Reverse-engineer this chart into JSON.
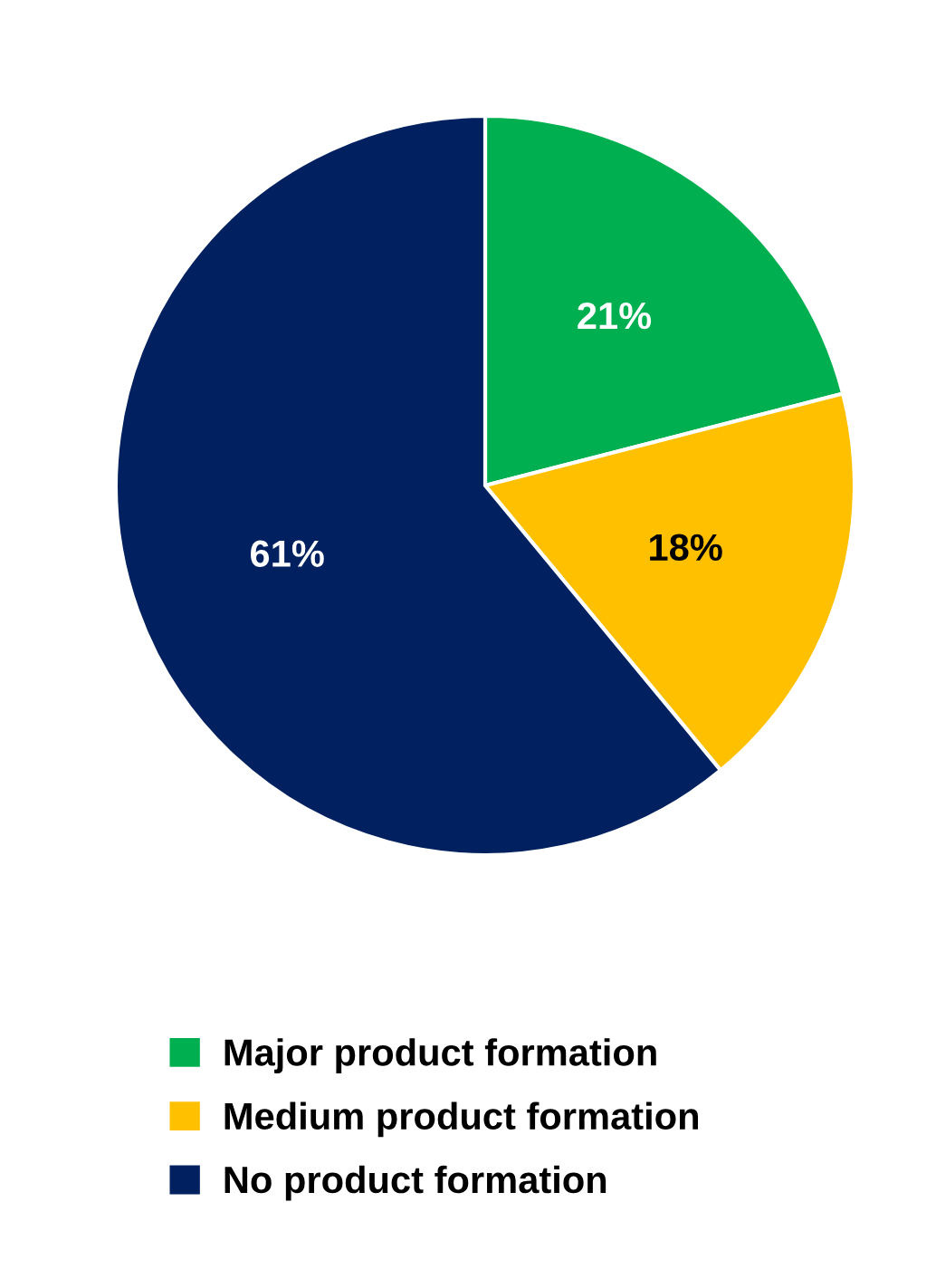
{
  "chart_data": {
    "type": "pie",
    "categories": [
      "Major product formation",
      "Medium product formation",
      "No product formation"
    ],
    "values": [
      21,
      18,
      61
    ],
    "colors": [
      "#00b050",
      "#ffc000",
      "#002060"
    ],
    "value_labels": [
      "21%",
      "18%",
      "61%"
    ],
    "legend": "bottom"
  }
}
